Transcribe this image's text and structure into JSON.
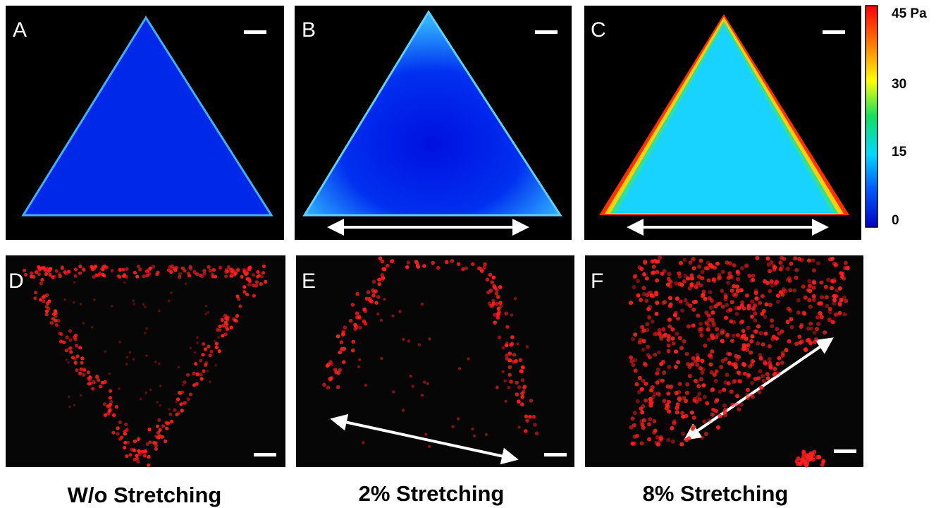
{
  "panels": [
    {
      "label": "A"
    },
    {
      "label": "B"
    },
    {
      "label": "C"
    },
    {
      "label": "D"
    },
    {
      "label": "E"
    },
    {
      "label": "F"
    }
  ],
  "colorbar": {
    "labels": [
      "45 Pa",
      "30",
      "15",
      "0"
    ]
  },
  "captions": [
    "W/o Stretching",
    "2% Stretching",
    "8% Stretching"
  ]
}
